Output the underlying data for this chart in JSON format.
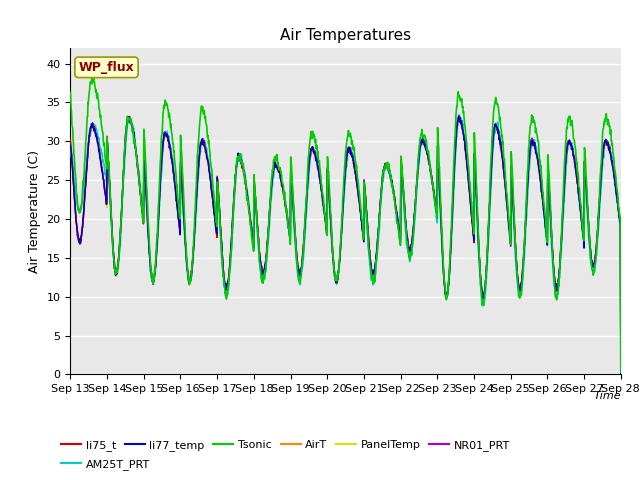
{
  "title": "Air Temperatures",
  "ylabel": "Air Temperature (C)",
  "xlabel": "Time",
  "ylim": [
    0,
    42
  ],
  "yticks": [
    0,
    5,
    10,
    15,
    20,
    25,
    30,
    35,
    40
  ],
  "background_color": "#e8e8e8",
  "plot_bg": "#dcdcdc",
  "series": [
    {
      "name": "li75_t",
      "color": "#cc0000",
      "lw": 1.0,
      "zorder": 4
    },
    {
      "name": "li77_temp",
      "color": "#0000cc",
      "lw": 1.0,
      "zorder": 4
    },
    {
      "name": "Tsonic",
      "color": "#00cc00",
      "lw": 1.2,
      "zorder": 5
    },
    {
      "name": "AirT",
      "color": "#ff8800",
      "lw": 1.0,
      "zorder": 3
    },
    {
      "name": "PanelTemp",
      "color": "#dddd00",
      "lw": 1.0,
      "zorder": 3
    },
    {
      "name": "NR01_PRT",
      "color": "#aa00cc",
      "lw": 1.0,
      "zorder": 3
    },
    {
      "name": "AM25T_PRT",
      "color": "#00cccc",
      "lw": 1.2,
      "zorder": 3
    }
  ],
  "xtick_labels": [
    "Sep 13",
    "Sep 14",
    "Sep 15",
    "Sep 16",
    "Sep 17",
    "Sep 18",
    "Sep 19",
    "Sep 20",
    "Sep 21",
    "Sep 22",
    "Sep 23",
    "Sep 24",
    "Sep 25",
    "Sep 26",
    "Sep 27",
    "Sep 28"
  ],
  "annotation_text": "WP_flux",
  "annotation_color": "#8b0000",
  "annotation_bg": "#ffffcc",
  "annotation_edge": "#999900",
  "n_days": 15,
  "peak_temps_base": [
    32,
    33,
    31,
    30,
    28,
    27,
    29,
    29,
    27,
    30,
    33,
    32,
    30,
    30,
    30
  ],
  "peak_temps_tsonic": [
    38,
    33,
    35,
    34,
    28,
    28,
    31,
    31,
    27,
    31,
    36,
    35,
    33,
    33,
    33
  ],
  "min_temps": [
    17,
    13,
    12,
    12,
    11,
    13,
    13,
    12,
    13,
    16,
    10,
    10,
    11,
    11,
    14
  ],
  "min_temps_tsonic": [
    21,
    13,
    12,
    12,
    10,
    12,
    12,
    12,
    12,
    15,
    10,
    9,
    10,
    10,
    13
  ]
}
